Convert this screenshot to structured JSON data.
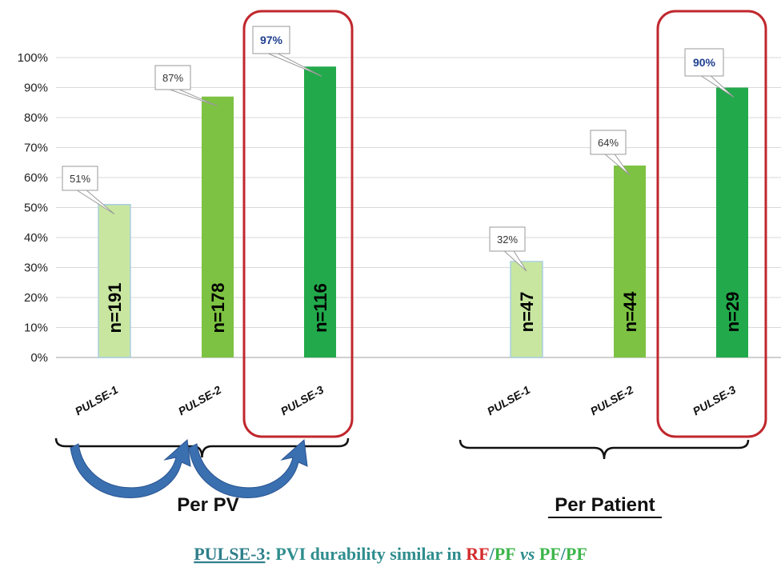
{
  "chart_data": {
    "type": "bar",
    "yticks": [
      "0%",
      "10%",
      "20%",
      "30%",
      "40%",
      "50%",
      "60%",
      "70%",
      "80%",
      "90%",
      "100%"
    ],
    "ylim": [
      0,
      100
    ],
    "grid": true,
    "groups": [
      {
        "label": "Per PV",
        "categories": [
          "PULSE-1",
          "PULSE-2",
          "PULSE-3"
        ],
        "values": [
          51,
          87,
          97
        ],
        "value_labels": [
          "51%",
          "87%",
          "97%"
        ],
        "n_labels": [
          "n=191",
          "n=178",
          "n=116"
        ],
        "highlighted": "PULSE-3"
      },
      {
        "label": "Per Patient",
        "categories": [
          "PULSE-1",
          "PULSE-2",
          "PULSE-3"
        ],
        "values": [
          32,
          64,
          90
        ],
        "value_labels": [
          "32%",
          "64%",
          "90%"
        ],
        "n_labels": [
          "n=47",
          "n=44",
          "n=29"
        ],
        "highlighted": "PULSE-3"
      }
    ]
  },
  "caption": {
    "link_text": "PULSE-3",
    "part1": ": PVI durability similar in ",
    "rf": "RF",
    "slash1": "/",
    "pf1": "PF",
    "vs": " vs ",
    "pf2": "PF",
    "slash2": "/",
    "pf3": "PF"
  },
  "colors": {
    "pulse1": "#c8e6a0",
    "pulse2": "#7dc242",
    "pulse3": "#22a94b",
    "highlight_box": "#c0272d",
    "arrow": "#3a6fb0",
    "caption_link": "#2f7f8a",
    "caption_text": "#2f8d8d",
    "rf": "#d42a2a",
    "pf": "#3cb54a"
  }
}
